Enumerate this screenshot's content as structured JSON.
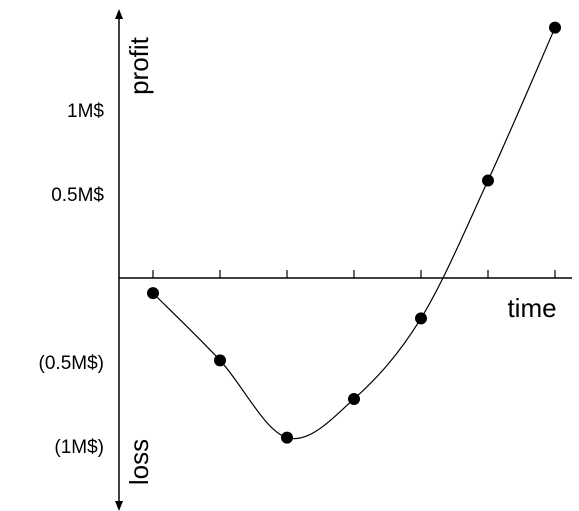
{
  "chart_data": {
    "type": "line",
    "xlabel": "time",
    "ylabel_top": "profit",
    "ylabel_bottom": "loss",
    "y_tick_labels": [
      {
        "value": 1.0,
        "label": "1M$"
      },
      {
        "value": 0.5,
        "label": "0.5M$"
      },
      {
        "value": -0.5,
        "label": "(0.5M$)"
      },
      {
        "value": -1.0,
        "label": "(1M$)"
      }
    ],
    "x_ticks": [
      1,
      2,
      3,
      4,
      5,
      6,
      7
    ],
    "xlim": [
      0.5,
      7.3
    ],
    "ylim": [
      -1.21,
      1.43
    ],
    "series": [
      {
        "x": [
          1,
          2,
          3,
          4,
          5,
          6,
          7
        ],
        "values": [
          -0.09,
          -0.49,
          -0.95,
          -0.72,
          -0.24,
          0.58,
          1.49
        ]
      }
    ],
    "marker": "filled-circle",
    "line_style": "smooth",
    "grid": false,
    "legend": "none",
    "color": "#000000"
  }
}
